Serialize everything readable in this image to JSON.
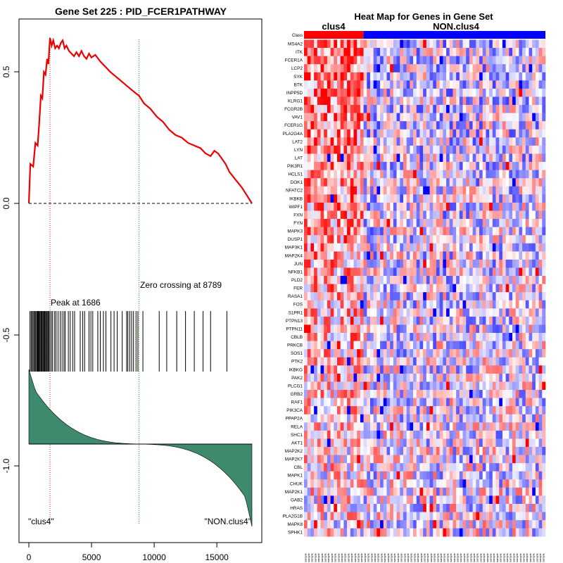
{
  "chart_data": [
    {
      "type": "line",
      "title": "Gene Set  225 : PID_FCER1PATHWAY",
      "xlim": [
        0,
        17800
      ],
      "ylim": [
        -1.2,
        0.65
      ],
      "x_ticks": [
        0,
        5000,
        10000,
        15000
      ],
      "x_tick_labels": [
        "0",
        "5000",
        "10000",
        "15000"
      ],
      "y_ticks": [
        0.5,
        0.0,
        -0.5,
        -1.0
      ],
      "y_tick_labels": [
        "0.5",
        "0.0",
        "-0.5",
        "-1.0"
      ],
      "peak_at": 1686,
      "peak_label": "Peak at 1686",
      "zero_crossing_at": 8789,
      "zero_crossing_label": "Zero crossing at 8789",
      "left_label": "\"clus4\"",
      "right_label": "\"NON.clus4\"",
      "colors": {
        "es_line": "#ee0000",
        "peak": "#dd2222",
        "zero_cross": "#22bb22",
        "metric_fill": "#3d8a6c"
      },
      "running_es": {
        "x": [
          0,
          120,
          350,
          520,
          700,
          820,
          960,
          1080,
          1200,
          1330,
          1460,
          1560,
          1686,
          1820,
          1950,
          2100,
          2250,
          2400,
          2550,
          2700,
          2850,
          3000,
          3200,
          3400,
          3600,
          3800,
          4000,
          4200,
          4400,
          4600,
          4800,
          5000,
          5300,
          5700,
          6100,
          6500,
          7000,
          7500,
          8000,
          8500,
          8789,
          9200,
          9700,
          10200,
          10700,
          11200,
          11700,
          12200,
          12700,
          13200,
          13700,
          14100,
          14500,
          14800,
          15100,
          15400,
          15700,
          16000,
          16500,
          17000,
          17400,
          17800
        ],
        "y": [
          0.0,
          0.15,
          0.14,
          0.23,
          0.22,
          0.3,
          0.41,
          0.4,
          0.5,
          0.49,
          0.55,
          0.53,
          0.63,
          0.6,
          0.62,
          0.59,
          0.6,
          0.59,
          0.61,
          0.62,
          0.59,
          0.6,
          0.58,
          0.57,
          0.56,
          0.575,
          0.56,
          0.58,
          0.56,
          0.55,
          0.57,
          0.555,
          0.565,
          0.54,
          0.52,
          0.5,
          0.48,
          0.46,
          0.44,
          0.42,
          0.41,
          0.38,
          0.36,
          0.33,
          0.31,
          0.28,
          0.26,
          0.25,
          0.23,
          0.22,
          0.21,
          0.19,
          0.18,
          0.2,
          0.19,
          0.17,
          0.15,
          0.12,
          0.09,
          0.06,
          0.03,
          0.0
        ]
      },
      "hits": [
        90,
        180,
        260,
        340,
        420,
        500,
        560,
        640,
        700,
        760,
        820,
        880,
        950,
        1010,
        1070,
        1140,
        1200,
        1260,
        1330,
        1400,
        1460,
        1530,
        1600,
        1686,
        1800,
        1900,
        2060,
        2170,
        2330,
        2500,
        2650,
        2800,
        2900,
        3150,
        3300,
        3500,
        3650,
        4100,
        4300,
        4450,
        4800,
        4950,
        5100,
        5500,
        5700,
        5950,
        6150,
        6550,
        6800,
        7050,
        7450,
        7800,
        7900,
        8050,
        8200,
        8350,
        8550,
        8700,
        9100,
        10400,
        11000,
        11800,
        12500,
        13200,
        13900,
        14500,
        15800
      ]
    },
    {
      "type": "heatmap",
      "title": "Heat Map for Genes in Gene Set",
      "class_row_label": "Class",
      "groups": [
        {
          "name": "clus4",
          "n_samples": 18,
          "color": "#ff0000"
        },
        {
          "name": "NON.clus4",
          "n_samples": 55,
          "color": "#0000ff"
        }
      ],
      "genes": [
        "MS4A2",
        "ITK",
        "FCER1A",
        "LCP2",
        "SYK",
        "BTK",
        "INPP5D",
        "KLRG1",
        "FCGR2B",
        "VAV1",
        "FCER1G",
        "PLA2G4A",
        "LAT2",
        "LYN",
        "LAT",
        "PIK3R1",
        "HCLS1",
        "DOK1",
        "NFATC2",
        "IKBKB",
        "WIPF1",
        "FXN",
        "FYN",
        "MAPK3",
        "DUSP1",
        "MAP3K1",
        "MAP2K4",
        "JUN",
        "NFKB1",
        "PLD2",
        "FER",
        "RASA1",
        "FOS",
        "S1PR1",
        "PTPN13",
        "PTPN11",
        "CBLB",
        "PRKCB",
        "SOS1",
        "PTK2",
        "IKBKG",
        "PAK2",
        "PLCG1",
        "GRB2",
        "RAF1",
        "PIK3CA",
        "PPAP2A",
        "RELA",
        "SHC1",
        "AKT1",
        "MAP2K2",
        "MAP2K7",
        "CBL",
        "MAPK1",
        "CHUK",
        "MAP2K1",
        "GAB2",
        "HRAS",
        "PLA2G1B",
        "MAPK8",
        "SPHK1"
      ],
      "sample_label": "sample"
    }
  ]
}
